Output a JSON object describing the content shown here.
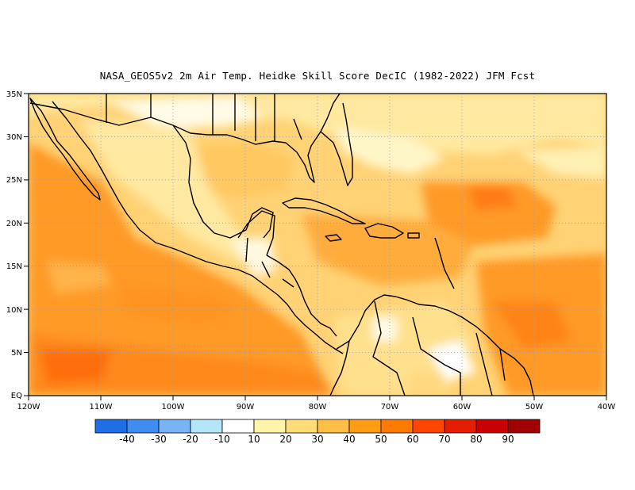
{
  "title": "NASA_GEOS5v2  2m Air Temp. Heidke Skill Score DecIC (1982-2022) JFM Fcst",
  "map": {
    "lon_range": [
      -120,
      -40
    ],
    "lat_range": [
      0,
      35
    ],
    "lat_ticks": [
      "EQ",
      "5N",
      "10N",
      "15N",
      "20N",
      "25N",
      "30N",
      "35N"
    ],
    "lon_ticks": [
      "120W",
      "110W",
      "100W",
      "90W",
      "80W",
      "70W",
      "60W",
      "50W",
      "40W"
    ],
    "grid": "dotted",
    "field": "Heidke Skill Score"
  },
  "colorbar": {
    "labels": [
      "-40",
      "-30",
      "-20",
      "-10",
      "10",
      "20",
      "30",
      "40",
      "50",
      "60",
      "70",
      "80",
      "90"
    ],
    "colors": [
      "#1e6ee6",
      "#3d8ef0",
      "#78b4f5",
      "#b4e6fa",
      "#ffffff",
      "#fff5aa",
      "#ffdc78",
      "#ffbe46",
      "#ff9c14",
      "#ff7a00",
      "#ff4600",
      "#e61e00",
      "#c80000",
      "#a00000"
    ]
  }
}
